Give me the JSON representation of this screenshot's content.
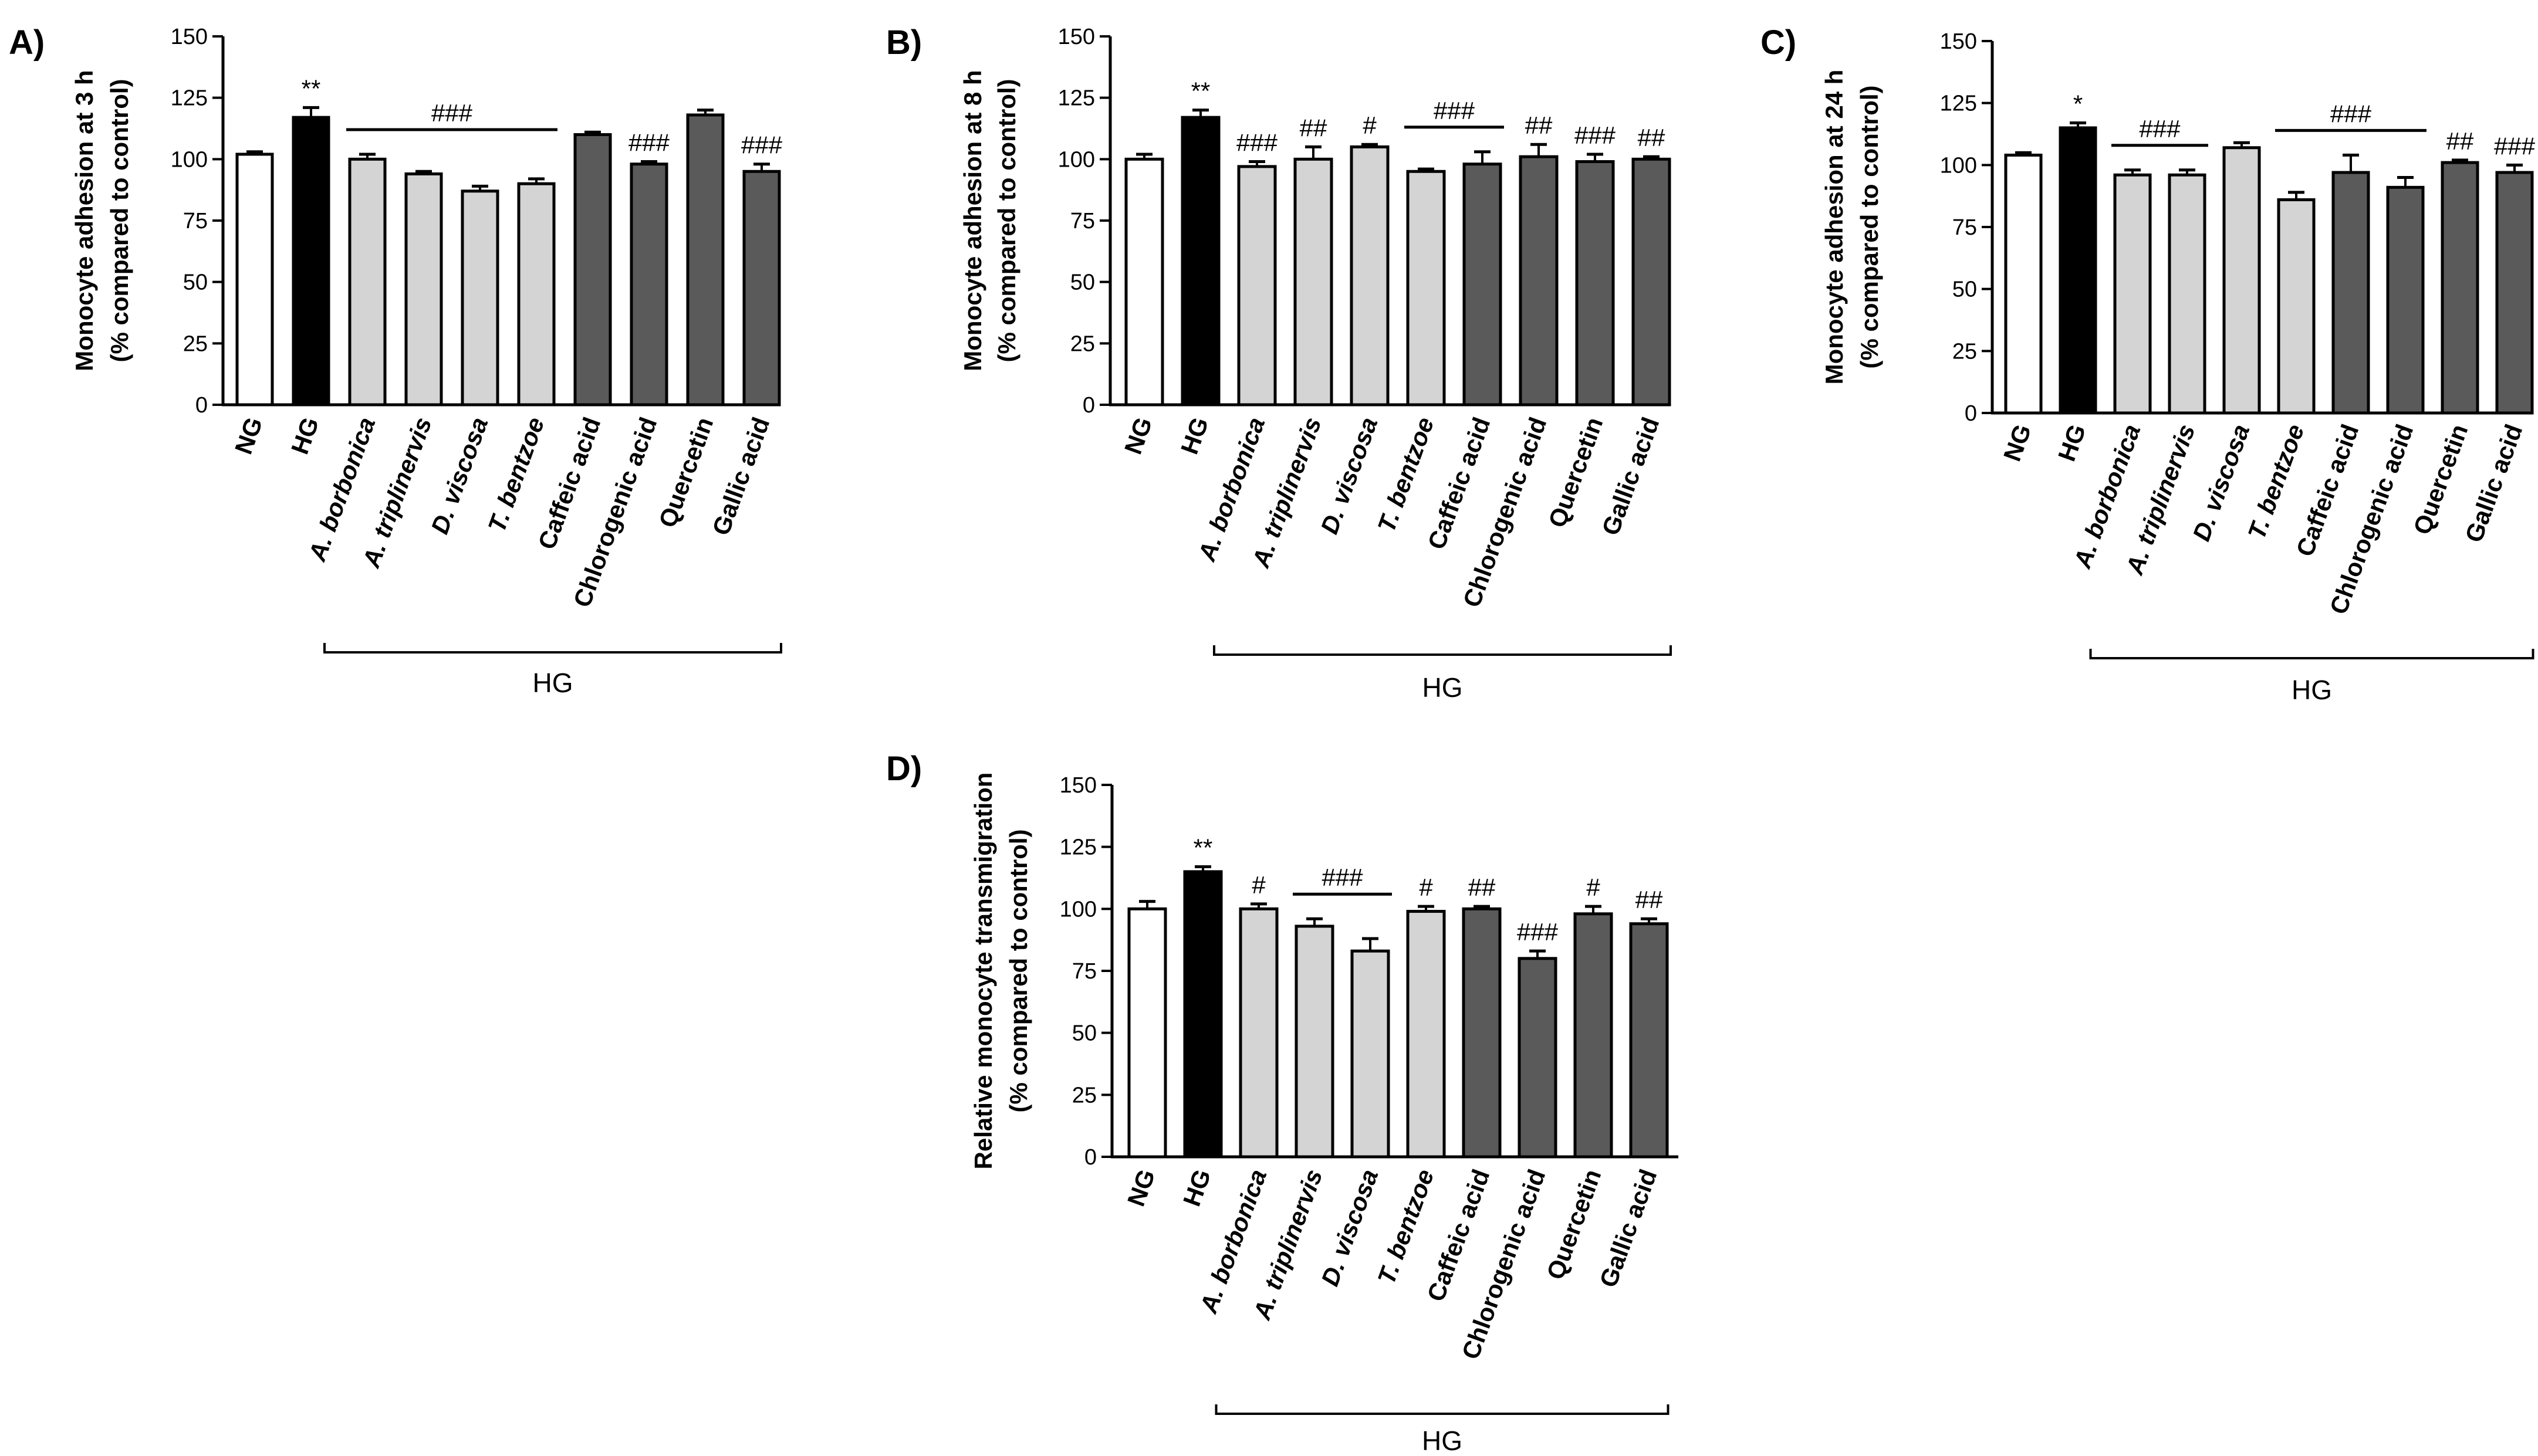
{
  "chart_data": [
    {
      "panel": "A)",
      "type": "bar",
      "ylabel": [
        "Monocyte adhesion at 3 h",
        "(% compared to control)"
      ],
      "ylim": [
        0,
        150
      ],
      "yticks": [
        0,
        25,
        50,
        75,
        100,
        125,
        150
      ],
      "categories": [
        "NG",
        "HG",
        "A. borbonica",
        "A. triplinervis",
        "D. viscosa",
        "T. bentzoe",
        "Caffeic acid",
        "Chlorogenic acid",
        "Quercetin",
        "Gallic acid"
      ],
      "italic": [
        false,
        false,
        true,
        true,
        true,
        true,
        false,
        false,
        false,
        false
      ],
      "values": [
        102,
        117,
        100,
        94,
        87,
        90,
        110,
        98,
        118,
        95
      ],
      "errors": [
        1,
        4,
        2,
        1,
        2,
        2,
        1,
        1,
        2,
        3
      ],
      "fills": [
        "#ffffff",
        "#000000",
        "#d4d4d4",
        "#d4d4d4",
        "#d4d4d4",
        "#d4d4d4",
        "#5a5a5a",
        "#5a5a5a",
        "#5a5a5a",
        "#5a5a5a"
      ],
      "annotations": [
        {
          "text": "**",
          "at": 1
        },
        {
          "text": "###",
          "span": [
            2,
            5
          ]
        },
        {
          "text": "###",
          "at": 7
        },
        {
          "text": "###",
          "at": 9
        }
      ],
      "group_label": "HG",
      "group_span": [
        2,
        9
      ]
    },
    {
      "panel": "B)",
      "type": "bar",
      "ylabel": [
        "Monocyte adhesion at 8 h",
        "(% compared to control)"
      ],
      "ylim": [
        0,
        150
      ],
      "yticks": [
        0,
        25,
        50,
        75,
        100,
        125,
        150
      ],
      "categories": [
        "NG",
        "HG",
        "A. borbonica",
        "A. triplinervis",
        "D. viscosa",
        "T. bentzoe",
        "Caffeic acid",
        "Chlorogenic acid",
        "Quercetin",
        "Gallic acid"
      ],
      "italic": [
        false,
        false,
        true,
        true,
        true,
        true,
        false,
        false,
        false,
        false
      ],
      "values": [
        100,
        117,
        97,
        100,
        105,
        95,
        98,
        101,
        99,
        100
      ],
      "errors": [
        2,
        3,
        2,
        5,
        1,
        1,
        5,
        5,
        3,
        1
      ],
      "fills": [
        "#ffffff",
        "#000000",
        "#d4d4d4",
        "#d4d4d4",
        "#d4d4d4",
        "#d4d4d4",
        "#5a5a5a",
        "#5a5a5a",
        "#5a5a5a",
        "#5a5a5a"
      ],
      "annotations": [
        {
          "text": "**",
          "at": 1
        },
        {
          "text": "###",
          "at": 2
        },
        {
          "text": "##",
          "at": 3
        },
        {
          "text": "#",
          "at": 4
        },
        {
          "text": "###",
          "span": [
            5,
            6
          ]
        },
        {
          "text": "##",
          "at": 7
        },
        {
          "text": "###",
          "at": 8
        },
        {
          "text": "##",
          "at": 9
        }
      ],
      "group_label": "HG",
      "group_span": [
        2,
        9
      ]
    },
    {
      "panel": "C)",
      "type": "bar",
      "ylabel": [
        "Monocyte adhesion at 24 h",
        "(% compared to control)"
      ],
      "ylim": [
        0,
        150
      ],
      "yticks": [
        0,
        25,
        50,
        75,
        100,
        125,
        150
      ],
      "categories": [
        "NG",
        "HG",
        "A. borbonica",
        "A. triplinervis",
        "D. viscosa",
        "T. bentzoe",
        "Caffeic acid",
        "Chlorogenic acid",
        "Quercetin",
        "Gallic acid"
      ],
      "italic": [
        false,
        false,
        true,
        true,
        true,
        true,
        false,
        false,
        false,
        false
      ],
      "values": [
        104,
        115,
        96,
        96,
        107,
        86,
        97,
        91,
        101,
        97
      ],
      "errors": [
        1,
        2,
        2,
        2,
        2,
        3,
        7,
        4,
        1,
        3
      ],
      "fills": [
        "#ffffff",
        "#000000",
        "#d4d4d4",
        "#d4d4d4",
        "#d4d4d4",
        "#d4d4d4",
        "#5a5a5a",
        "#5a5a5a",
        "#5a5a5a",
        "#5a5a5a"
      ],
      "annotations": [
        {
          "text": "*",
          "at": 1
        },
        {
          "text": "###",
          "span": [
            2,
            3
          ]
        },
        {
          "text": "###",
          "span": [
            5,
            7
          ]
        },
        {
          "text": "##",
          "at": 8
        },
        {
          "text": "###",
          "at": 9
        }
      ],
      "group_label": "HG",
      "group_span": [
        2,
        9
      ]
    },
    {
      "panel": "D)",
      "type": "bar",
      "ylabel": [
        "Relative monocyte transmigration",
        "(% compared to control)"
      ],
      "ylim": [
        0,
        150
      ],
      "yticks": [
        0,
        25,
        50,
        75,
        100,
        125,
        150
      ],
      "categories": [
        "NG",
        "HG",
        "A. borbonica",
        "A. triplinervis",
        "D. viscosa",
        "T. bentzoe",
        "Caffeic acid",
        "Chlorogenic acid",
        "Quercetin",
        "Gallic acid"
      ],
      "italic": [
        false,
        false,
        true,
        true,
        true,
        true,
        false,
        false,
        false,
        false
      ],
      "values": [
        100,
        115,
        100,
        93,
        83,
        99,
        100,
        80,
        98,
        94
      ],
      "errors": [
        3,
        2,
        2,
        3,
        5,
        2,
        1,
        3,
        3,
        2
      ],
      "fills": [
        "#ffffff",
        "#000000",
        "#d4d4d4",
        "#d4d4d4",
        "#d4d4d4",
        "#d4d4d4",
        "#5a5a5a",
        "#5a5a5a",
        "#5a5a5a",
        "#5a5a5a"
      ],
      "annotations": [
        {
          "text": "**",
          "at": 1
        },
        {
          "text": "#",
          "at": 2
        },
        {
          "text": "###",
          "span": [
            3,
            4
          ]
        },
        {
          "text": "#",
          "at": 5
        },
        {
          "text": "##",
          "at": 6
        },
        {
          "text": "###",
          "at": 7
        },
        {
          "text": "#",
          "at": 8
        },
        {
          "text": "##",
          "at": 9
        }
      ],
      "group_label": "HG",
      "group_span": [
        2,
        9
      ]
    }
  ]
}
